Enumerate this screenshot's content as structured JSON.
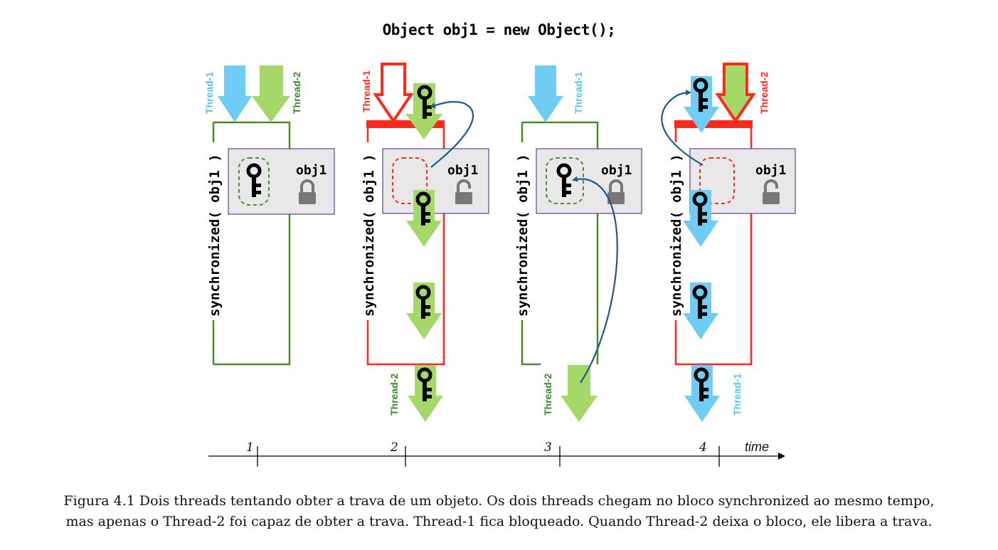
{
  "code_title": "Object obj1 = new Object();",
  "colors": {
    "thread1": "#6fcdf5",
    "thread2": "#a4d868",
    "thread2_label": "#3a8a2a",
    "thread1_label": "#5cc3ee",
    "active": "#ff2a1c",
    "idle_frame": "#4e8a2a",
    "box_fill": "#e8e8e8",
    "box_border": "#6a3d9a",
    "arc": "#1d5a8c",
    "lock": "#777777"
  },
  "panels": [
    {
      "step": "1",
      "sync_label": "synchronized( obj1 )",
      "obj_label": "obj1",
      "lock_state": "locked",
      "top_labels": [
        "Thread-1",
        "Thread-2"
      ],
      "bottom_label": ""
    },
    {
      "step": "2",
      "sync_label": "synchronized( obj1 )",
      "obj_label": "obj1",
      "lock_state": "unlocked",
      "top_labels": [
        "Thread-1"
      ],
      "bottom_label": "Thread-2"
    },
    {
      "step": "3",
      "sync_label": "synchronized( obj1 )",
      "obj_label": "obj1",
      "lock_state": "locked",
      "top_labels": [
        "Thread-1"
      ],
      "bottom_label": "Thread-2"
    },
    {
      "step": "4",
      "sync_label": "synchronized( obj1 )",
      "obj_label": "obj1",
      "lock_state": "unlocked",
      "top_labels": [
        "Thread-2"
      ],
      "bottom_label": "Thread-1"
    }
  ],
  "time_axis_label": "time",
  "caption": {
    "line1": "Figura 4.1 Dois threads tentando obter a trava de um objeto. Os dois threads chegam no bloco synchronized ao mesmo tempo,",
    "line2": "mas apenas o Thread-2 foi capaz de obter a trava. Thread-1 fica bloqueado. Quando Thread-2 deixa o bloco, ele libera a trava."
  },
  "icons": [
    "key-icon",
    "padlock-icon",
    "down-arrow-icon",
    "arc-arrow-icon"
  ]
}
